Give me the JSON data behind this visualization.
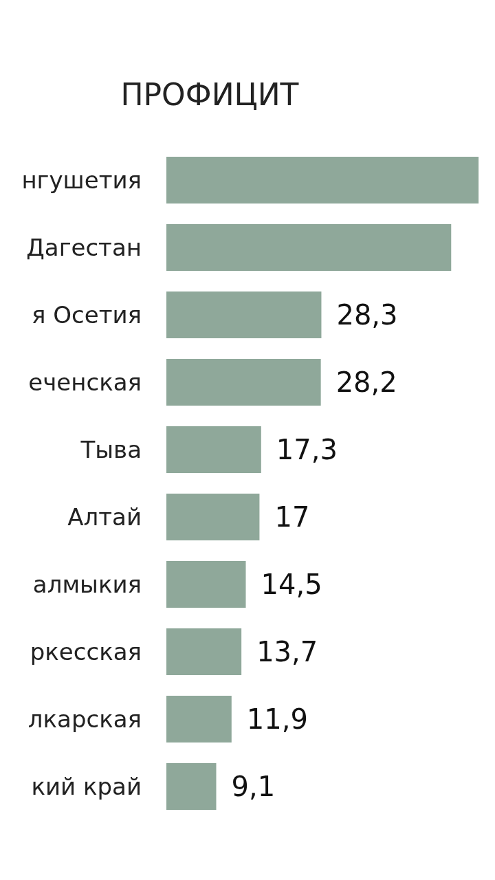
{
  "chart_data": {
    "type": "bar",
    "orientation": "horizontal",
    "title": "ПРОФИЦИТ",
    "categories": [
      "нгушетия",
      "Дагестан",
      "я Осетия",
      "еченская",
      "Тыва",
      "Алтай",
      "алмыкия",
      "ркесская",
      "лкарская",
      "кий край"
    ],
    "values": [
      57,
      52,
      28.3,
      28.2,
      17.3,
      17,
      14.5,
      13.7,
      11.9,
      9.1
    ],
    "value_labels": [
      null,
      null,
      "28,3",
      "28,2",
      "17,3",
      "17",
      "14,5",
      "13,7",
      "11,9",
      "9,1"
    ],
    "color": "#8fa89a"
  }
}
